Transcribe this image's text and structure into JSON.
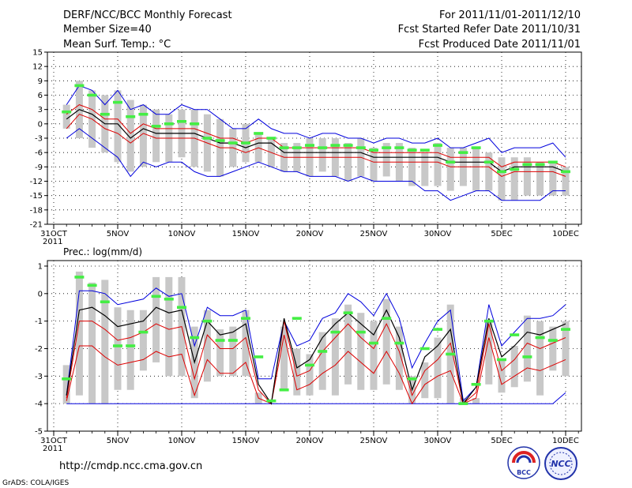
{
  "header": {
    "title": "DERF/NCC/BCC Monthly Forecast",
    "member_size": "Member Size=40",
    "variable": "Mean Surf. Temp.: °C",
    "period": "For 2011/11/01-2011/12/10",
    "fcst_started": "Fcst Started Refer Date 2011/10/31",
    "fcst_produced": "Fcst Produced Date 2011/11/01"
  },
  "footer": {
    "url": "http://cmdp.ncc.cma.gov.cn",
    "grads": "GrADS: COLA/IGES",
    "logo_bcc": "BCC",
    "logo_ncc": "NCC"
  },
  "colors": {
    "box": "#c8c8c8",
    "mean": "#000000",
    "ci": "#dd0000",
    "range": "#0000dd",
    "obs": "#44ee44",
    "grid": "#000000"
  },
  "chart_data": [
    {
      "type": "box-time-series",
      "title": "Mean Surf. Temp.: °C",
      "xlabel": "",
      "ylabel": "",
      "x_tick_labels": [
        "31OCT",
        "5NOV",
        "10NOV",
        "15NOV",
        "20NOV",
        "25NOV",
        "30NOV",
        "5DEC",
        "10DEC"
      ],
      "x_year_label": "2011",
      "x_tick_days": [
        0,
        5,
        10,
        15,
        20,
        25,
        30,
        35,
        40
      ],
      "ylim": [
        -21,
        15
      ],
      "yticks": [
        15,
        12,
        9,
        6,
        3,
        0,
        -3,
        -6,
        -9,
        -12,
        -15,
        -18,
        -21
      ],
      "days": [
        1,
        2,
        3,
        4,
        5,
        6,
        7,
        8,
        9,
        10,
        11,
        12,
        13,
        14,
        15,
        16,
        17,
        18,
        19,
        20,
        21,
        22,
        23,
        24,
        25,
        26,
        27,
        28,
        29,
        30,
        31,
        32,
        33,
        34,
        35,
        36,
        37,
        38,
        39,
        40
      ],
      "box_high": [
        4,
        9,
        7,
        6,
        7,
        5,
        4,
        3,
        2,
        3,
        3,
        2,
        1,
        -1,
        0,
        -2,
        -3,
        -4,
        -4,
        -3,
        -3,
        -3,
        -4,
        -3,
        -5,
        -4,
        -4,
        -5,
        -6,
        -4,
        -5,
        -5,
        -5,
        -6,
        -7,
        -7,
        -7,
        -8,
        -8,
        -9
      ],
      "box_low": [
        -1,
        -3,
        -5,
        -6,
        -8,
        -10,
        -9,
        -8,
        -8,
        -7,
        -9,
        -10,
        -11,
        -9,
        -8,
        -8,
        -9,
        -10,
        -10,
        -11,
        -10,
        -11,
        -12,
        -11,
        -12,
        -11,
        -12,
        -13,
        -13,
        -13,
        -14,
        -13,
        -14,
        -14,
        -16,
        -16,
        -15,
        -15,
        -15,
        -15
      ],
      "range_max": [
        4,
        8,
        7,
        4,
        7,
        3,
        4,
        2,
        2,
        4,
        3,
        3,
        1,
        -1,
        -1,
        1,
        -1,
        -2,
        -2,
        -3,
        -2,
        -2,
        -3,
        -3,
        -4,
        -3,
        -3,
        -4,
        -4,
        -3,
        -5,
        -5,
        -4,
        -3,
        -6,
        -5,
        -5,
        -5,
        -4,
        -7
      ],
      "range_min": [
        -3,
        -1,
        -3,
        -5,
        -7,
        -11,
        -8,
        -9,
        -8,
        -8,
        -10,
        -11,
        -11,
        -10,
        -9,
        -8,
        -9,
        -10,
        -10,
        -11,
        -11,
        -11,
        -12,
        -11,
        -12,
        -12,
        -12,
        -12,
        -14,
        -14,
        -16,
        -15,
        -14,
        -14,
        -16,
        -16,
        -16,
        -16,
        -14,
        -14
      ],
      "ci_upper": [
        2,
        4,
        3,
        1,
        1,
        -2,
        0,
        -1,
        -1,
        -1,
        -1,
        -2,
        -3,
        -3,
        -4,
        -3,
        -3,
        -5,
        -5,
        -5,
        -5,
        -5,
        -5,
        -5,
        -6,
        -6,
        -6,
        -6,
        -6,
        -6,
        -7,
        -7,
        -7,
        -7,
        -9,
        -8,
        -8,
        -8,
        -8,
        -9
      ],
      "mean": [
        1,
        3,
        2,
        0,
        0,
        -3,
        -1,
        -2,
        -2,
        -2,
        -2,
        -3,
        -4,
        -4,
        -5,
        -4,
        -4,
        -6,
        -6,
        -6,
        -6,
        -6,
        -6,
        -6,
        -7,
        -7,
        -7,
        -7,
        -7,
        -7,
        -8,
        -8,
        -8,
        -8,
        -10,
        -9,
        -9,
        -9,
        -9,
        -10
      ],
      "ci_lower": [
        -1,
        2,
        1,
        -1,
        -2,
        -4,
        -2,
        -3,
        -3,
        -3,
        -3,
        -4,
        -5,
        -5,
        -6,
        -5,
        -6,
        -7,
        -7,
        -7,
        -7,
        -7,
        -7,
        -7,
        -8,
        -8,
        -8,
        -8,
        -8,
        -8,
        -9,
        -9,
        -9,
        -9,
        -11,
        -10,
        -10,
        -10,
        -10,
        -11
      ],
      "observed": [
        2.5,
        8,
        6,
        2,
        4.5,
        1.5,
        2,
        -0.5,
        0,
        0.5,
        0,
        -3,
        -3.5,
        -4,
        -4,
        -2,
        -3,
        -5,
        -5,
        -4.5,
        -5,
        -4.5,
        -4.5,
        -5,
        -5.5,
        -5,
        -5,
        -5.5,
        -5.5,
        -4.5,
        -8,
        -6,
        -5,
        -8,
        -10,
        -9.5,
        -8.5,
        -8.5,
        -8,
        -10
      ]
    },
    {
      "type": "box-time-series",
      "title": "Prec.: log(mm/d)",
      "xlabel": "",
      "ylabel": "",
      "x_tick_labels": [
        "31OCT",
        "5NOV",
        "10NOV",
        "15NOV",
        "20NOV",
        "25NOV",
        "30NOV",
        "5DEC",
        "10DEC"
      ],
      "x_year_label": "2011",
      "x_tick_days": [
        0,
        5,
        10,
        15,
        20,
        25,
        30,
        35,
        40
      ],
      "ylim": [
        -5,
        1.2
      ],
      "yticks": [
        1,
        0,
        -1,
        -2,
        -3,
        -4,
        -5
      ],
      "days": [
        1,
        2,
        3,
        4,
        5,
        6,
        7,
        8,
        9,
        10,
        11,
        12,
        13,
        14,
        15,
        16,
        17,
        18,
        19,
        20,
        21,
        22,
        23,
        24,
        25,
        26,
        27,
        28,
        29,
        30,
        31,
        32,
        33,
        34,
        35,
        36,
        37,
        38,
        39,
        40
      ],
      "box_high": [
        -2.6,
        0.8,
        0.4,
        0.5,
        -0.5,
        -0.6,
        -0.6,
        0.6,
        0.6,
        0.6,
        -1.2,
        -0.6,
        -1.3,
        -1.2,
        -0.6,
        -3.6,
        -4,
        -1.2,
        -2,
        -2.2,
        -1.4,
        -0.9,
        -0.4,
        -0.7,
        -1,
        -0.2,
        -1.2,
        -3,
        -2.5,
        -1.6,
        -0.4,
        -3.8,
        -3.8,
        -1,
        -2.4,
        -1.9,
        -0.8,
        -1,
        -1.2,
        -1
      ],
      "box_low": [
        -4,
        -3.7,
        -4,
        -4,
        -3.5,
        -3.5,
        -2.8,
        -2.5,
        -3,
        -3,
        -3.8,
        -3.2,
        -3,
        -3,
        -3,
        -4,
        -4,
        -3.5,
        -3.7,
        -3.7,
        -3.5,
        -3.7,
        -3.3,
        -3.5,
        -3.5,
        -3.3,
        -3.5,
        -4,
        -3.8,
        -3.8,
        -4,
        -4,
        -4,
        -3.3,
        -3.6,
        -3.4,
        -3.2,
        -3.7,
        -2.8,
        -3
      ],
      "range_max": [
        -3.7,
        0.1,
        0.1,
        0,
        -0.4,
        -0.3,
        -0.2,
        0.2,
        -0.1,
        0,
        -1.9,
        -0.5,
        -0.8,
        -0.8,
        -0.6,
        -3.1,
        -3.1,
        -1,
        -1.9,
        -1.7,
        -0.9,
        -0.7,
        0,
        -0.3,
        -0.8,
        0,
        -0.9,
        -2.7,
        -1.8,
        -1,
        -0.6,
        -3.9,
        -3.4,
        -0.4,
        -1.9,
        -1.4,
        -0.9,
        -0.9,
        -0.8,
        -0.4
      ],
      "range_min": [
        -4,
        -4,
        -4,
        -4,
        -4,
        -4,
        -4,
        -4,
        -4,
        -4,
        -4,
        -4,
        -4,
        -4,
        -4,
        -4,
        -4,
        -4,
        -4,
        -4,
        -4,
        -4,
        -4,
        -4,
        -4,
        -4,
        -4,
        -4,
        -4,
        -4,
        -4,
        -4,
        -4,
        -4,
        -4,
        -4,
        -4,
        -4,
        -4,
        -3.6
      ],
      "ci_upper": [
        -3.8,
        -1,
        -1,
        -1.3,
        -1.7,
        -1.6,
        -1.4,
        -1.1,
        -1.3,
        -1.2,
        -3.1,
        -1.5,
        -2,
        -2,
        -1.6,
        -3.5,
        -4,
        -1,
        -3,
        -2.8,
        -2.1,
        -1.6,
        -1.1,
        -1.6,
        -2,
        -1.1,
        -2.1,
        -3.7,
        -2.8,
        -2.4,
        -1.8,
        -4,
        -3.6,
        -1.1,
        -2.8,
        -2.4,
        -1.8,
        -2,
        -1.8,
        -1.6
      ],
      "mean": [
        -3.7,
        -0.6,
        -0.5,
        -0.8,
        -1.2,
        -1.1,
        -1,
        -0.5,
        -0.7,
        -0.6,
        -2.5,
        -1,
        -1.5,
        -1.4,
        -1.1,
        -3.3,
        -4,
        -0.9,
        -2.7,
        -2.4,
        -1.6,
        -1.1,
        -0.7,
        -1.1,
        -1.5,
        -0.6,
        -1.6,
        -3.5,
        -2.3,
        -1.9,
        -1.3,
        -4,
        -3.4,
        -0.9,
        -2.3,
        -1.9,
        -1.4,
        -1.5,
        -1.3,
        -1.1
      ],
      "ci_lower": [
        -3.9,
        -1.9,
        -1.9,
        -2.3,
        -2.6,
        -2.5,
        -2.4,
        -2.1,
        -2.3,
        -2.2,
        -3.7,
        -2.4,
        -2.9,
        -2.9,
        -2.5,
        -3.8,
        -4,
        -1.5,
        -3.5,
        -3.3,
        -2.9,
        -2.6,
        -2.1,
        -2.5,
        -2.9,
        -2.1,
        -2.9,
        -4,
        -3.3,
        -3,
        -2.8,
        -4,
        -3.8,
        -1.6,
        -3.3,
        -3,
        -2.7,
        -2.8,
        -2.6,
        -2.4
      ],
      "observed": [
        -3.1,
        0.6,
        0.3,
        -0.3,
        -1.9,
        -1.9,
        -1.4,
        -0.1,
        -0.2,
        -0.5,
        -1.6,
        -1,
        -1.7,
        -1.7,
        -0.9,
        -2.3,
        -3.9,
        -3.5,
        -0.9,
        -2.6,
        -2.1,
        -1.4,
        -0.7,
        -1.4,
        -1.8,
        -0.9,
        -1.8,
        -3.1,
        -2,
        -1.3,
        -2.2,
        -4,
        -3.3,
        -1,
        -2.4,
        -1.5,
        -2.3,
        -1.6,
        -1.7,
        -1.3
      ]
    }
  ]
}
